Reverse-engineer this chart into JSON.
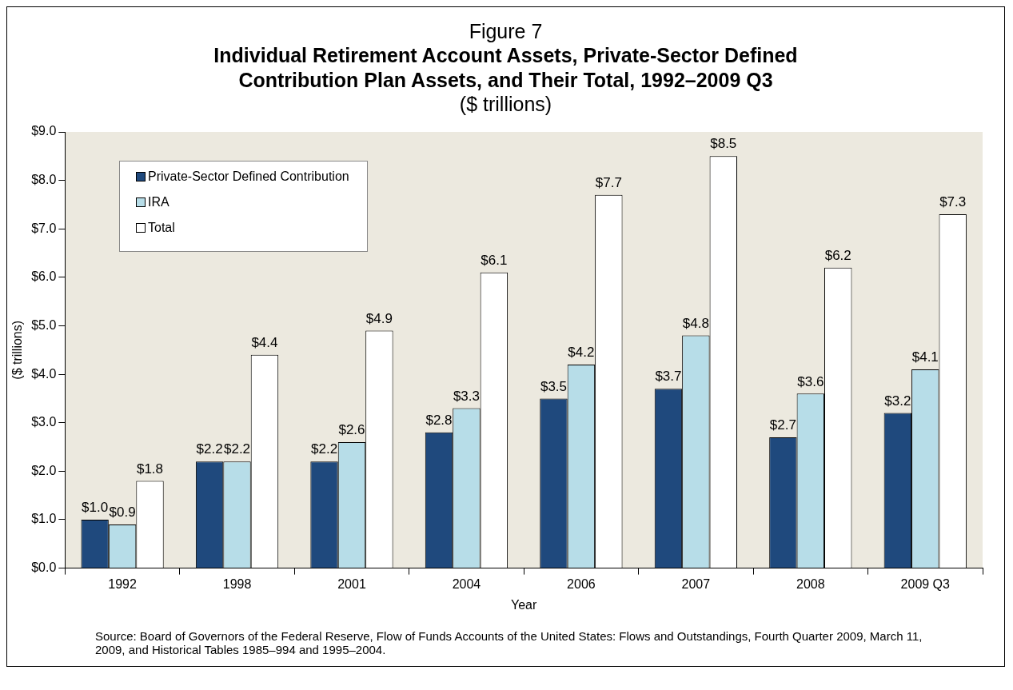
{
  "chart_data": {
    "type": "bar",
    "title": "Individual Retirement Account Assets, Private-Sector Defined Contribution Plan Assets, and Their Total, 1992–2009 Q3",
    "subtitle": "Figure 7",
    "annotations": [
      "($ trillions)",
      "Source: Board of Governors of the Federal Reserve, Flow of Funds Accounts of the United States: Flows and Outstandings, Fourth Quarter 2009, March 11, 2009, and Historical Tables 1985–994 and 1995–2004."
    ],
    "xlabel": "Year",
    "ylabel": "($ trillions)",
    "categories": [
      "1992",
      "1998",
      "2001",
      "2004",
      "2006",
      "2007",
      "2008",
      "2009 Q3"
    ],
    "series": [
      {
        "name": "Private-Sector Defined Contribution",
        "color": "#1f497d",
        "values": [
          1.0,
          2.2,
          2.2,
          2.8,
          3.5,
          3.7,
          2.7,
          3.2
        ],
        "value_labels": [
          "$1.0",
          "$2.2",
          "$2.2",
          "$2.8",
          "$3.5",
          "$3.7",
          "$2.7",
          "$3.2"
        ]
      },
      {
        "name": "IRA",
        "color": "#b7dde8",
        "values": [
          0.9,
          2.2,
          2.6,
          3.3,
          4.2,
          4.8,
          3.6,
          4.1
        ],
        "value_labels": [
          "$0.9",
          "$2.2",
          "$2.6",
          "$3.3",
          "$4.2",
          "$4.8",
          "$3.6",
          "$4.1"
        ]
      },
      {
        "name": "Total",
        "color": "#ffffff",
        "values": [
          1.8,
          4.4,
          4.9,
          6.1,
          7.7,
          8.5,
          6.2,
          7.3
        ],
        "value_labels": [
          "$1.8",
          "$4.4",
          "$4.9",
          "$6.1",
          "$7.7",
          "$8.5",
          "$6.2",
          "$7.3"
        ]
      }
    ],
    "ylim": [
      0,
      9
    ],
    "yticks": [
      {
        "value": 0,
        "label": "$0.0"
      },
      {
        "value": 1,
        "label": "$1.0"
      },
      {
        "value": 2,
        "label": "$2.0"
      },
      {
        "value": 3,
        "label": "$3.0"
      },
      {
        "value": 4,
        "label": "$4.0"
      },
      {
        "value": 5,
        "label": "$5.0"
      },
      {
        "value": 6,
        "label": "$6.0"
      },
      {
        "value": 7,
        "label": "$7.0"
      },
      {
        "value": 8,
        "label": "$8.0"
      },
      {
        "value": 9,
        "label": "$9.0"
      }
    ],
    "grid": false,
    "legend": "top left"
  }
}
